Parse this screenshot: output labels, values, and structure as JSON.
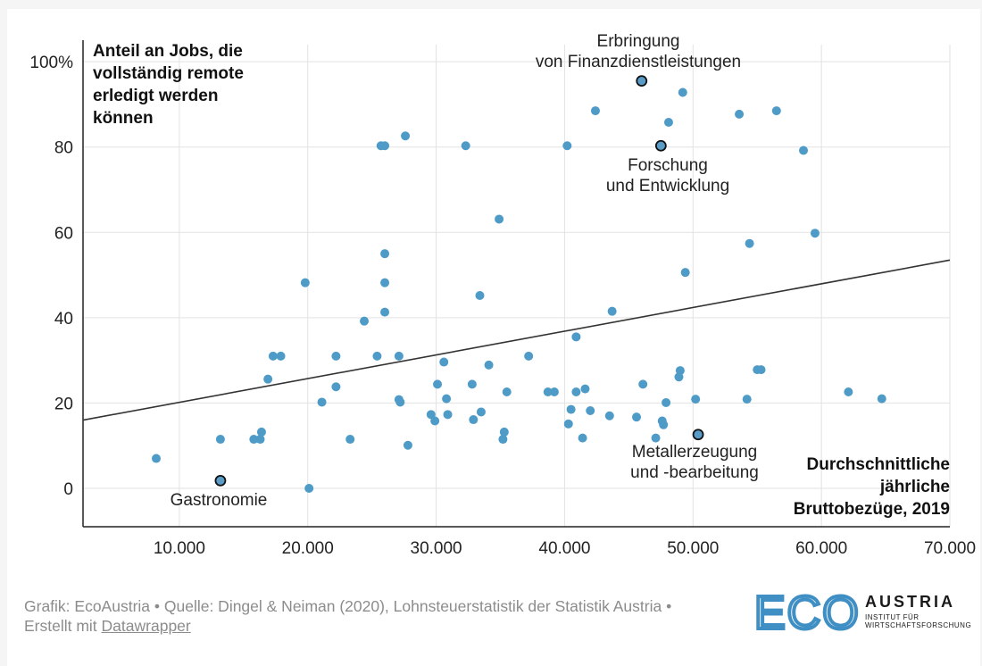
{
  "chart_data": {
    "type": "scatter",
    "ylabel": "Anteil an Jobs, die vollständig remote erledigt werden können",
    "ylabel_lines": [
      "Anteil an Jobs, die",
      "vollständig remote",
      "erledigt werden",
      "können"
    ],
    "xlabel": "Durchschnittliche jährliche Bruttobezüge, 2019",
    "xlabel_lines": [
      "Durchschnittliche",
      "jährliche",
      "Bruttobezüge, 2019"
    ],
    "xlim": [
      2500,
      70000
    ],
    "ylim": [
      -9,
      104
    ],
    "x_ticks": [
      10000,
      20000,
      30000,
      40000,
      50000,
      60000,
      70000
    ],
    "x_tick_labels": [
      "10.000",
      "20.000",
      "30.000",
      "40.000",
      "50.000",
      "60.000",
      "70.000"
    ],
    "y_ticks": [
      0,
      20,
      40,
      60,
      80,
      100
    ],
    "y_tick_labels": [
      "0",
      "20",
      "40",
      "60",
      "80",
      "100%"
    ],
    "grid": true,
    "trendline": {
      "x": [
        2500,
        70000
      ],
      "y": [
        16,
        53.5
      ]
    },
    "points": [
      [
        8200,
        7
      ],
      [
        13200,
        11.5
      ],
      [
        15800,
        11.5
      ],
      [
        16300,
        11.5
      ],
      [
        16400,
        13.2
      ],
      [
        16900,
        25.6
      ],
      [
        17300,
        31
      ],
      [
        17900,
        31
      ],
      [
        19800,
        48.2
      ],
      [
        20100,
        0
      ],
      [
        21100,
        20.2
      ],
      [
        22200,
        23.8
      ],
      [
        22200,
        31
      ],
      [
        23300,
        11.5
      ],
      [
        24400,
        39.2
      ],
      [
        25400,
        31
      ],
      [
        25700,
        80.3
      ],
      [
        26000,
        80.3
      ],
      [
        26000,
        55
      ],
      [
        26000,
        48.2
      ],
      [
        26000,
        41.3
      ],
      [
        27100,
        31
      ],
      [
        27100,
        20.8
      ],
      [
        27200,
        20.2
      ],
      [
        27600,
        82.6
      ],
      [
        27800,
        10.1
      ],
      [
        29600,
        17.3
      ],
      [
        29900,
        15.8
      ],
      [
        30100,
        24.4
      ],
      [
        30600,
        29.6
      ],
      [
        30800,
        21
      ],
      [
        30900,
        17.3
      ],
      [
        32300,
        80.3
      ],
      [
        32800,
        24.4
      ],
      [
        32900,
        16.1
      ],
      [
        33400,
        45.2
      ],
      [
        33500,
        17.9
      ],
      [
        34100,
        28.9
      ],
      [
        34900,
        63.1
      ],
      [
        35200,
        11.5
      ],
      [
        35300,
        13.2
      ],
      [
        35500,
        22.6
      ],
      [
        37200,
        31
      ],
      [
        38700,
        22.6
      ],
      [
        39200,
        22.6
      ],
      [
        40200,
        80.3
      ],
      [
        40300,
        15.1
      ],
      [
        40500,
        18.5
      ],
      [
        40900,
        35.5
      ],
      [
        40900,
        22.6
      ],
      [
        41400,
        11.8
      ],
      [
        41600,
        23.3
      ],
      [
        42000,
        18.2
      ],
      [
        42400,
        88.5
      ],
      [
        43500,
        17
      ],
      [
        43700,
        41.5
      ],
      [
        45600,
        16.7
      ],
      [
        46100,
        24.4
      ],
      [
        47100,
        11.8
      ],
      [
        47600,
        15.8
      ],
      [
        47700,
        14.9
      ],
      [
        47900,
        20.1
      ],
      [
        48100,
        85.8
      ],
      [
        48900,
        26.1
      ],
      [
        49000,
        27.6
      ],
      [
        49200,
        92.8
      ],
      [
        49400,
        50.6
      ],
      [
        50200,
        20.9
      ],
      [
        53600,
        87.7
      ],
      [
        54200,
        20.9
      ],
      [
        54400,
        57.4
      ],
      [
        55000,
        27.8
      ],
      [
        55300,
        27.8
      ],
      [
        56500,
        88.5
      ],
      [
        58600,
        79.2
      ],
      [
        59500,
        59.8
      ],
      [
        62100,
        22.6
      ],
      [
        64700,
        21
      ]
    ],
    "highlighted": [
      {
        "label": "Erbringung von Finanzdienstleistungen",
        "label_lines": [
          "Erbringung",
          "von Finanzdienstleistungen"
        ],
        "x": 46000,
        "y": 95.5
      },
      {
        "label": "Forschung und Entwicklung",
        "label_lines": [
          "Forschung",
          "und Entwicklung"
        ],
        "x": 47500,
        "y": 80.3
      },
      {
        "label": "Metallerzeugung und -bearbeitung",
        "label_lines": [
          "Metallerzeugung",
          "und -bearbeitung"
        ],
        "x": 50400,
        "y": 12.6
      },
      {
        "label": "Gastronomie",
        "label_lines": [
          "Gastronomie"
        ],
        "x": 13200,
        "y": 1.8
      }
    ],
    "colors": {
      "point": "#4f9bc8",
      "highlight": "#5a9cc8",
      "line": "#333333",
      "grid": "#e2e2e2"
    }
  },
  "footer": {
    "line1": "Grafik: EcoAustria • Quelle: Dingel & Neiman (2020), Lohnsteuerstatistik der Statistik Austria •",
    "line2_prefix": "Erstellt mit ",
    "link": "Datawrapper"
  },
  "logo": {
    "mark": "ECO",
    "name": "AUSTRIA",
    "sub1": "INSTITUT FÜR",
    "sub2": "WIRTSCHAFTSFORSCHUNG"
  }
}
